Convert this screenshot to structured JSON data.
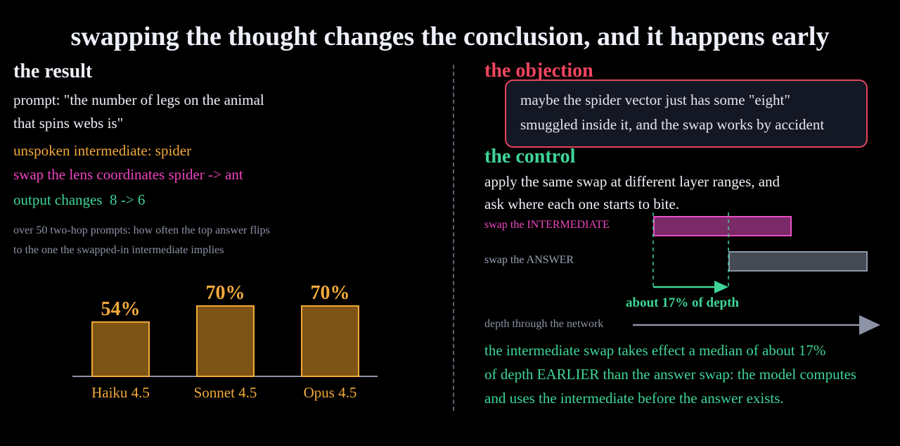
{
  "title": "swapping the thought changes the conclusion, and it happens early",
  "result": {
    "heading": "the result",
    "prompt_line1": "prompt: \"the number of legs on the animal",
    "prompt_line2": "that spins webs is\"",
    "unspoken": "unspoken intermediate: spider",
    "swap": "swap the lens coordinates spider -> ant",
    "output": "output changes  8 -> 6",
    "caption_line1": "over 50 two-hop prompts: how often the top answer flips",
    "caption_line2": "to the one the swapped-in intermediate implies"
  },
  "chart_data": {
    "type": "bar",
    "categories": [
      "Haiku 4.5",
      "Sonnet 4.5",
      "Opus 4.5"
    ],
    "values": [
      54,
      70,
      70
    ],
    "value_labels": [
      "54%",
      "70%",
      "70%"
    ],
    "unit": "%",
    "ylim": [
      0,
      100
    ],
    "bar_color": "#7d5415",
    "bar_edge_color": "#f2a93b",
    "grid": false
  },
  "objection": {
    "heading": "the objection",
    "line1": "maybe the spider vector just has some \"eight\"",
    "line2": "smuggled inside it, and the swap works by accident"
  },
  "control": {
    "heading": "the control",
    "line1": "apply the same swap at different layer ranges, and",
    "line2": "ask where each one starts to bite.",
    "row_intermediate": "swap the INTERMEDIATE",
    "row_answer": "swap the ANSWER",
    "annotation": "about 17% of depth",
    "depth_axis": "depth through the network",
    "conclusion_line1": "the intermediate swap takes effect a median of about 17%",
    "conclusion_line2": "of depth EARLIER than the answer swap: the model computes",
    "conclusion_line3": "and uses the intermediate before the answer exists."
  },
  "colors": {
    "background": "#000000",
    "orange": "#f2a93b",
    "pink": "#ef45c0",
    "green": "#3fd597",
    "red": "#f0455f",
    "muted": "#8d93a6"
  }
}
